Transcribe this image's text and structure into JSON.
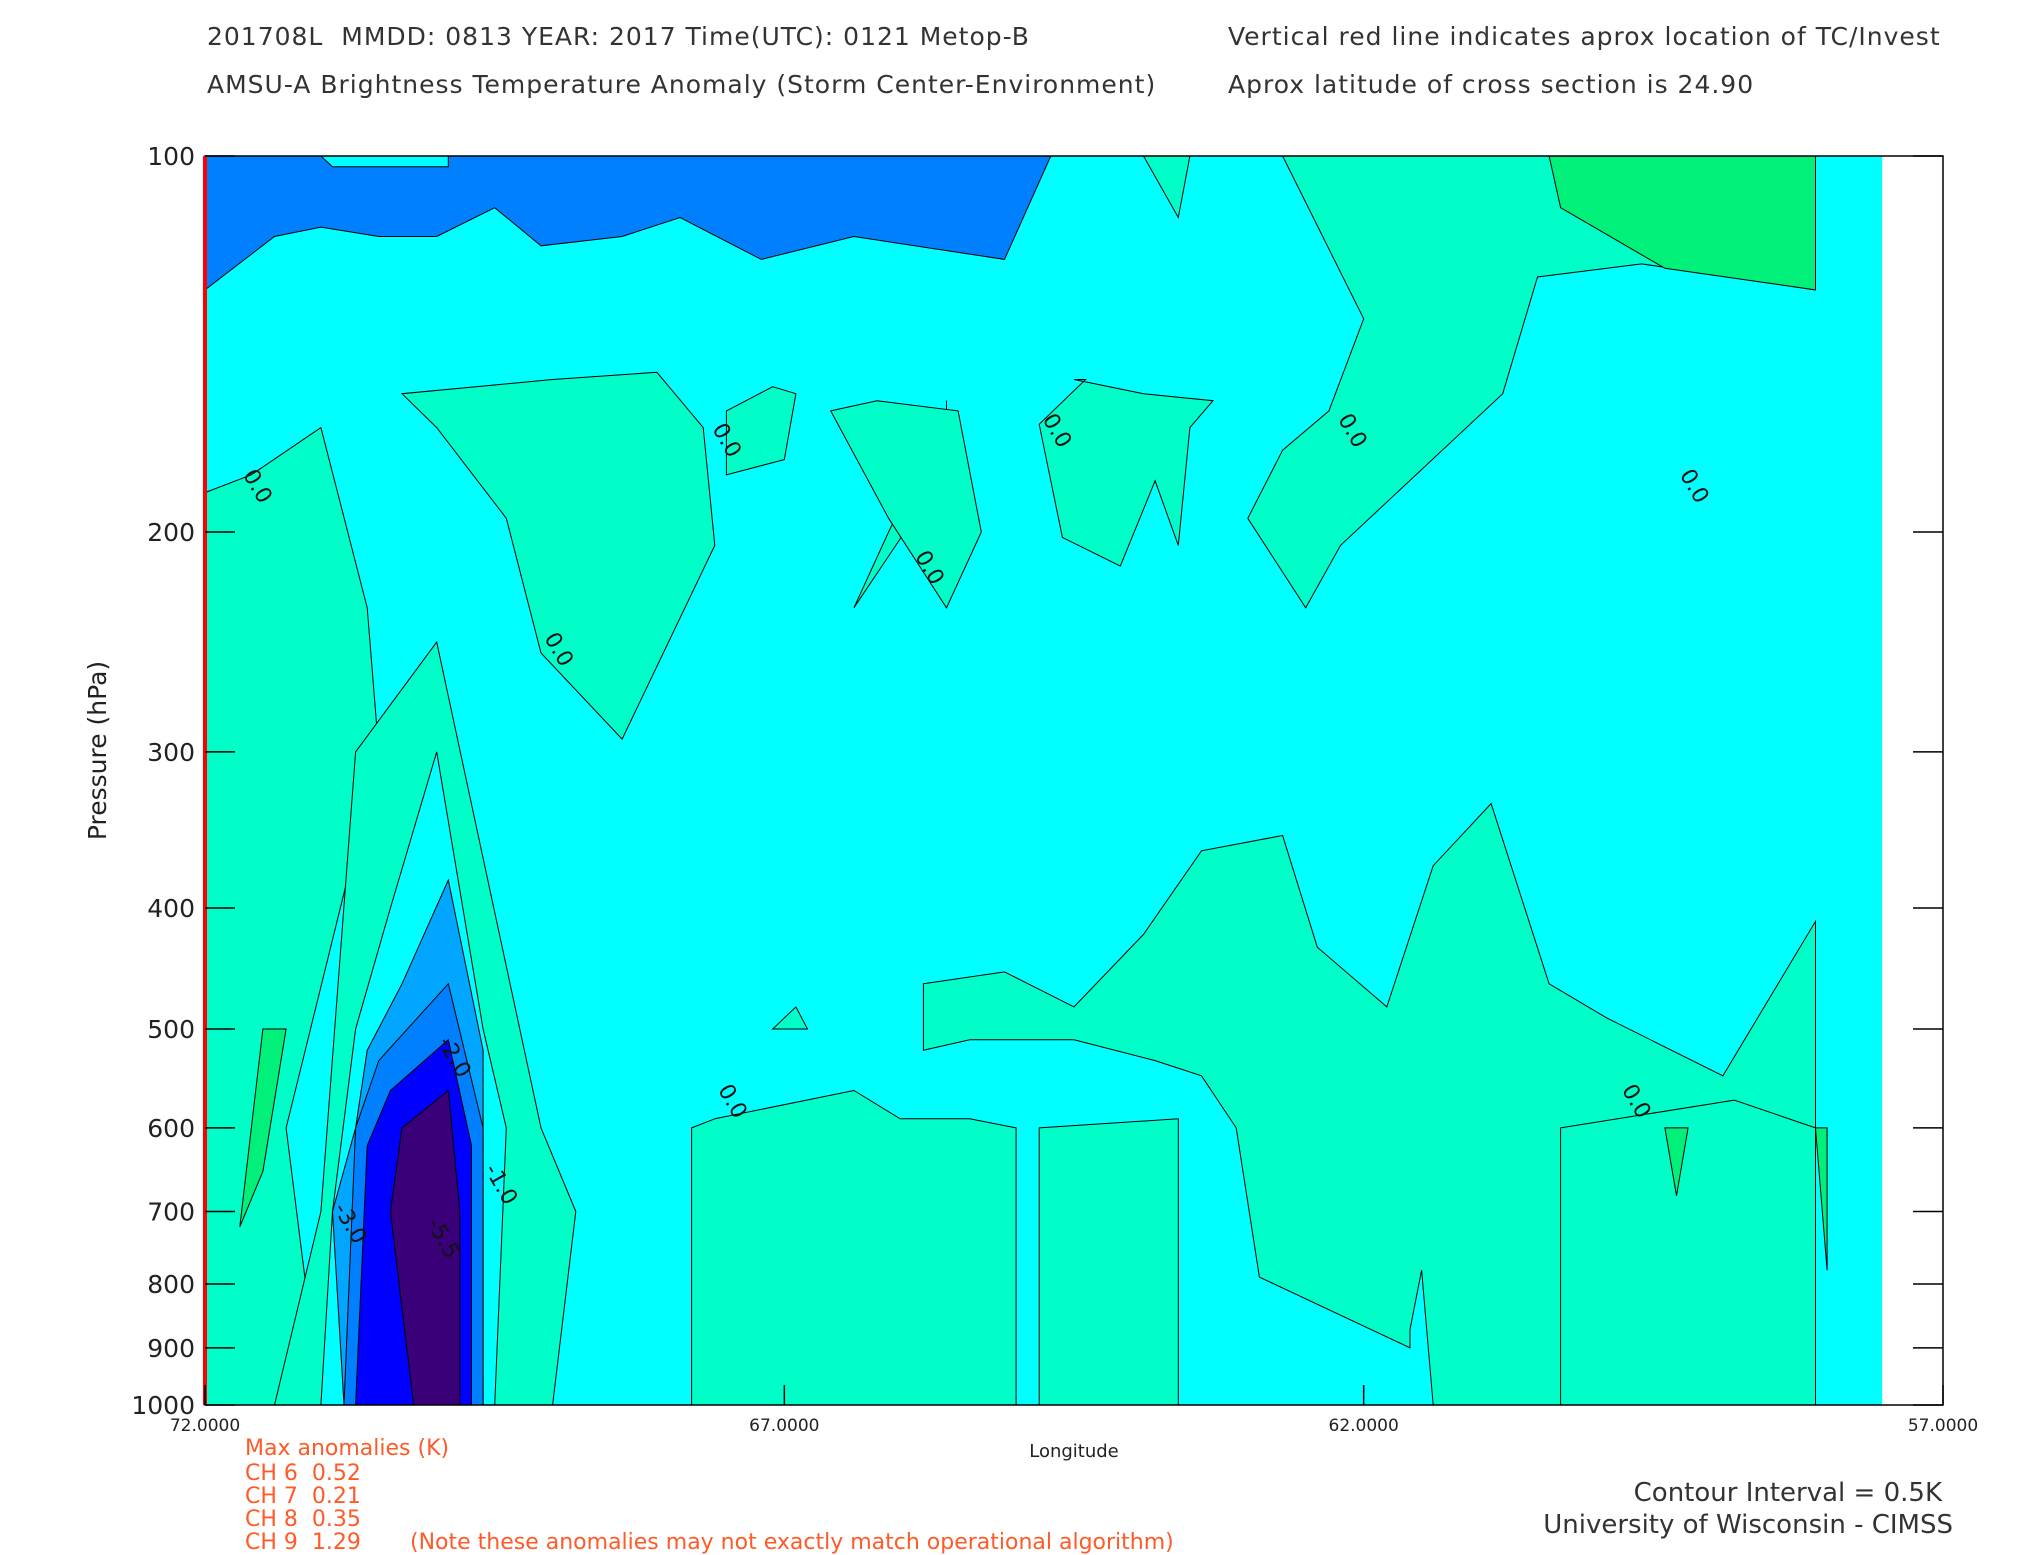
{
  "header": {
    "line1_left": "201708L  MMDD: 0813 YEAR: 2017 Time(UTC): 0121 Metop-B",
    "line2_left": "AMSU-A Brightness Temperature Anomaly (Storm Center-Environment)",
    "line1_right": "Vertical red line indicates aprox location of TC/Invest",
    "line2_right": "Aprox latitude of cross section is 24.90"
  },
  "chart_data": {
    "type": "contour",
    "title": "AMSU-A Brightness Temperature Anomaly (Storm Center-Environment)",
    "xlabel": "Longitude",
    "ylabel": "Pressure (hPa)",
    "xlim": [
      72.0,
      57.0
    ],
    "ylim": [
      1000,
      100
    ],
    "y_scale": "log",
    "x_ticks": [
      "72.0000",
      "67.0000",
      "62.0000",
      "57.0000"
    ],
    "x_tick_values": [
      72.0,
      67.0,
      62.0,
      57.0
    ],
    "y_ticks": [
      "100",
      "200",
      "300",
      "400",
      "500",
      "600",
      "700",
      "800",
      "900",
      "1000"
    ],
    "y_tick_values": [
      100,
      200,
      300,
      400,
      500,
      600,
      700,
      800,
      900,
      1000
    ],
    "tc_longitude": 72.0,
    "contour_labels": [
      {
        "text": "0.0",
        "lon": 71.6,
        "p": 185
      },
      {
        "text": "0.0",
        "lon": 69.0,
        "p": 250
      },
      {
        "text": "0.0",
        "lon": 67.55,
        "p": 170
      },
      {
        "text": "0.0",
        "lon": 65.8,
        "p": 215
      },
      {
        "text": "0.0",
        "lon": 64.7,
        "p": 167
      },
      {
        "text": "0.0",
        "lon": 62.15,
        "p": 167
      },
      {
        "text": "0.0",
        "lon": 59.2,
        "p": 185
      },
      {
        "text": "0.0",
        "lon": 67.5,
        "p": 575
      },
      {
        "text": "0.0",
        "lon": 59.7,
        "p": 575
      },
      {
        "text": "-2.0",
        "lon": 69.9,
        "p": 530
      },
      {
        "text": "-1.0",
        "lon": 69.5,
        "p": 670
      },
      {
        "text": "-3.0",
        "lon": 70.8,
        "p": 720
      },
      {
        "text": "-5.5",
        "lon": 70.0,
        "p": 740
      }
    ],
    "colors": {
      "background": "#00ffff",
      "positive_0_0_5": "#00ffc8",
      "positive_0_5_1": "#00f07a",
      "neg_0_5": "#00a6ff",
      "neg_1_0": "#0080ff",
      "neg_deep": "#0000ff",
      "neg_core": "#3a007a",
      "tc_line": "#ff0000",
      "notes": "#ff5a28"
    }
  },
  "footer": {
    "max_title": "Max anomalies (K)",
    "channels": [
      "CH 6  0.52",
      "CH 7  0.21",
      "CH 8  0.35",
      "CH 9  1.29"
    ],
    "note": "(Note these anomalies may not exactly match operational algorithm)",
    "contour_interval": "Contour Interval = 0.5K",
    "institution": "University of Wisconsin - CIMSS"
  }
}
